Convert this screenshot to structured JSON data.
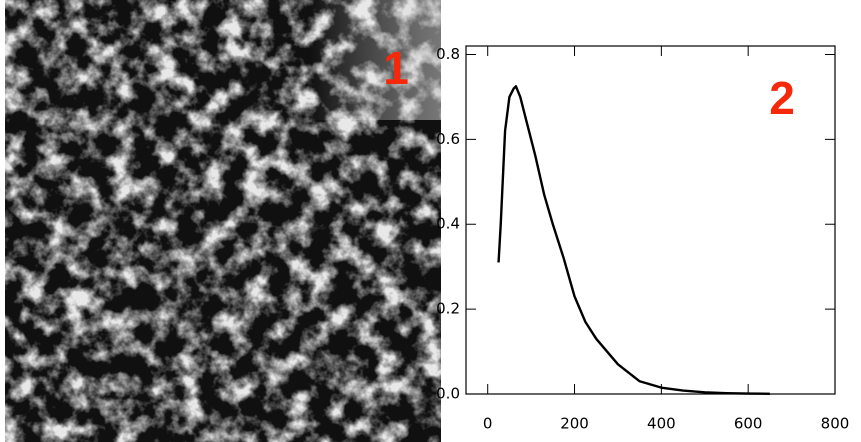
{
  "chart_data": {
    "type": "line",
    "annotations": [
      "1",
      "2"
    ],
    "x": [
      25,
      30,
      40,
      50,
      60,
      65,
      75,
      90,
      110,
      130,
      150,
      175,
      200,
      225,
      250,
      275,
      300,
      325,
      350,
      400,
      450,
      500,
      550,
      600,
      650
    ],
    "series": [
      {
        "color": "#000000",
        "values": [
          0.31,
          0.4,
          0.62,
          0.7,
          0.72,
          0.725,
          0.7,
          0.64,
          0.56,
          0.47,
          0.4,
          0.32,
          0.23,
          0.17,
          0.13,
          0.1,
          0.07,
          0.05,
          0.03,
          0.015,
          0.008,
          0.004,
          0.002,
          0.001,
          0.0005
        ]
      }
    ],
    "xlim": [
      -50,
      800
    ],
    "ylim": [
      0,
      0.82
    ],
    "xticks": [
      0,
      200,
      400,
      600,
      800
    ],
    "yticks": [
      {
        "value": 0,
        "label": "0.0"
      },
      {
        "value": 0.2,
        "label": "0.2"
      },
      {
        "value": 0.4,
        "label": "0.4"
      },
      {
        "value": 0.6,
        "label": "0.6"
      },
      {
        "value": 0.8,
        "label": "0.8"
      }
    ]
  }
}
